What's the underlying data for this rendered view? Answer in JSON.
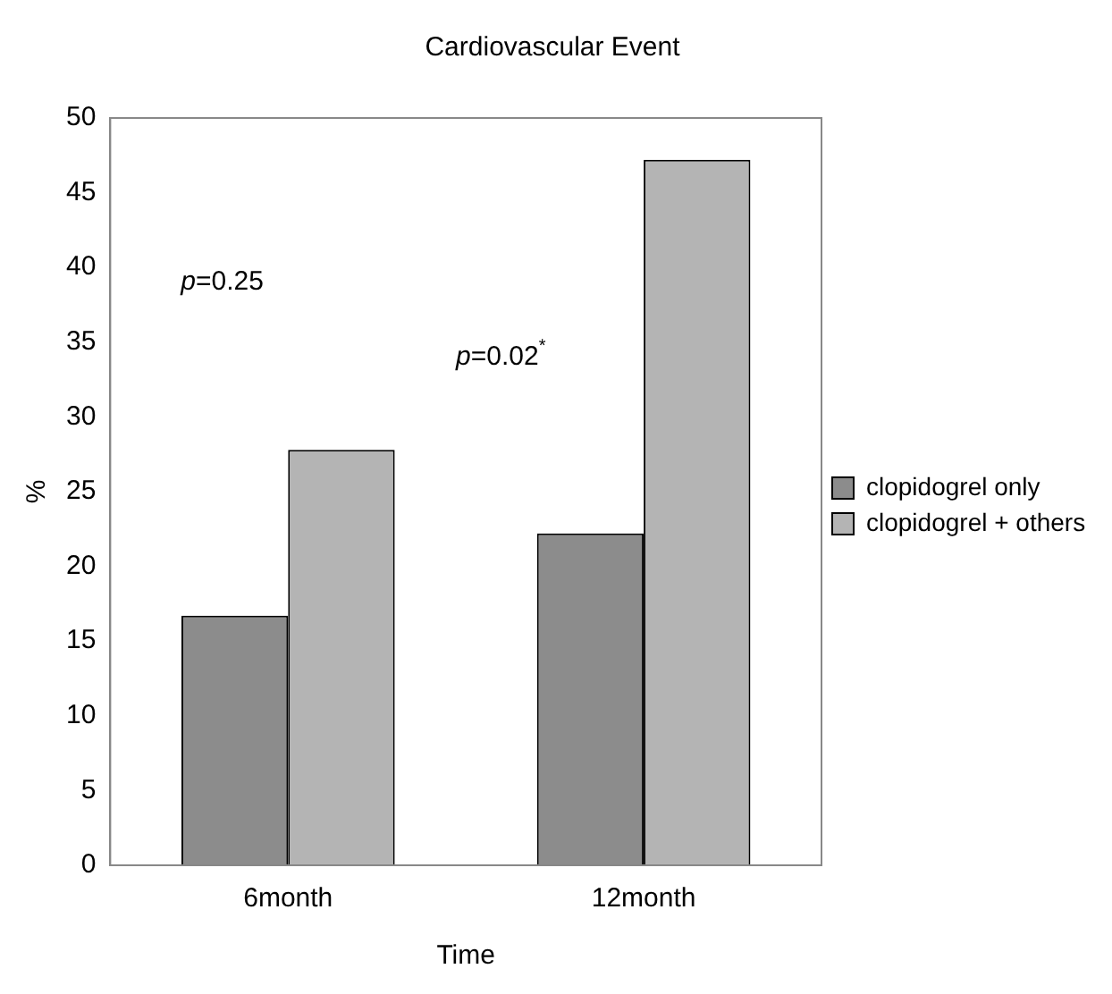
{
  "chart_data": {
    "type": "bar",
    "title": "Cardiovascular Event",
    "xlabel": "Time",
    "ylabel": "%",
    "categories": [
      "6month",
      "12month"
    ],
    "series": [
      {
        "name": "clopidogrel only",
        "color": "#8c8c8c",
        "values": [
          16.7,
          22.2
        ]
      },
      {
        "name": "clopidogrel + others",
        "color": "#b4b4b4",
        "values": [
          27.8,
          47.2
        ]
      }
    ],
    "ylim": [
      0,
      50
    ],
    "yticks": [
      0,
      5,
      10,
      15,
      20,
      25,
      30,
      35,
      40,
      45,
      50
    ],
    "grid": false,
    "legend": "right",
    "annotations": [
      "p=0.25",
      "p=0.02$^{*}$"
    ]
  }
}
